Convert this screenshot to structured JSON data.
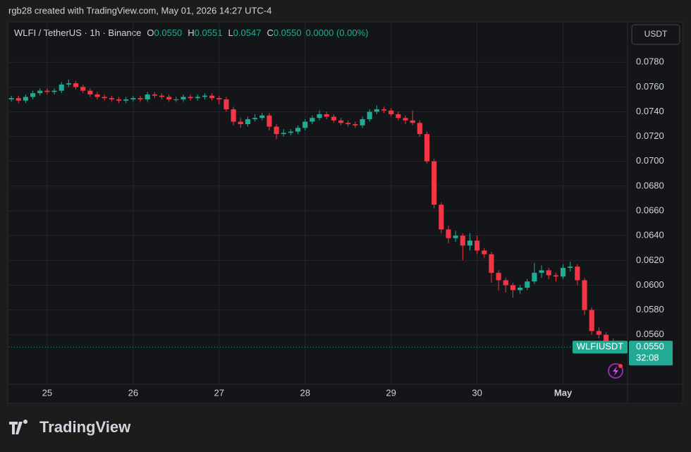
{
  "header": {
    "caption": "rgb28 created with TradingView.com, May 01, 2026 14:27 UTC-4"
  },
  "legend": {
    "symbol": "WLFI / TetherUS · 1h · Binance",
    "o_label": "O",
    "o": "0.0550",
    "h_label": "H",
    "h": "0.0551",
    "l_label": "L",
    "l": "0.0547",
    "c_label": "C",
    "c": "0.0550",
    "change": "0.0000 (0.00%)"
  },
  "currency_button": "USDT",
  "last_price": {
    "symbol": "WLFIUSDT",
    "value": 0.055,
    "label": "0.0550",
    "countdown": "32:08"
  },
  "logo": "TradingView",
  "chart_data": {
    "type": "candlestick",
    "up_color": "#22ab94",
    "down_color": "#f23645",
    "grid": true,
    "xlim": [
      -11,
      162
    ],
    "xticks": [
      {
        "value": 0,
        "label": "25"
      },
      {
        "value": 24,
        "label": "26"
      },
      {
        "value": 48,
        "label": "27"
      },
      {
        "value": 72,
        "label": "28"
      },
      {
        "value": 96,
        "label": "29"
      },
      {
        "value": 120,
        "label": "30"
      },
      {
        "value": 144,
        "label": "May"
      }
    ],
    "ylim": [
      0.052,
      0.0812
    ],
    "yticks": [
      {
        "value": 0.056,
        "label": "0.0560"
      },
      {
        "value": 0.058,
        "label": "0.0580"
      },
      {
        "value": 0.06,
        "label": "0.0600"
      },
      {
        "value": 0.062,
        "label": "0.0620"
      },
      {
        "value": 0.064,
        "label": "0.0640"
      },
      {
        "value": 0.066,
        "label": "0.0660"
      },
      {
        "value": 0.068,
        "label": "0.0680"
      },
      {
        "value": 0.07,
        "label": "0.0700"
      },
      {
        "value": 0.072,
        "label": "0.0720"
      },
      {
        "value": 0.074,
        "label": "0.0740"
      },
      {
        "value": 0.076,
        "label": "0.0760"
      },
      {
        "value": 0.078,
        "label": "0.0780"
      }
    ],
    "x": [
      -10,
      -8,
      -6,
      -4,
      -2,
      0,
      2,
      4,
      6,
      8,
      10,
      12,
      14,
      16,
      18,
      20,
      22,
      24,
      26,
      28,
      30,
      32,
      34,
      36,
      38,
      40,
      42,
      44,
      46,
      48,
      50,
      52,
      54,
      56,
      58,
      60,
      62,
      64,
      66,
      68,
      70,
      72,
      74,
      76,
      78,
      80,
      82,
      84,
      86,
      88,
      90,
      92,
      94,
      96,
      98,
      100,
      102,
      104,
      106,
      108,
      110,
      112,
      114,
      116,
      118,
      120,
      122,
      124,
      126,
      128,
      130,
      132,
      134,
      136,
      138,
      140,
      142,
      144,
      146,
      148,
      150,
      152,
      154,
      156,
      158
    ],
    "open": [
      0.075,
      0.0751,
      0.0749,
      0.0752,
      0.0755,
      0.0757,
      0.0756,
      0.0757,
      0.0762,
      0.0763,
      0.076,
      0.0757,
      0.0754,
      0.0752,
      0.0751,
      0.075,
      0.0749,
      0.075,
      0.0751,
      0.075,
      0.0754,
      0.0753,
      0.0752,
      0.075,
      0.075,
      0.0752,
      0.0751,
      0.0752,
      0.0753,
      0.0751,
      0.075,
      0.0742,
      0.0732,
      0.073,
      0.0734,
      0.0735,
      0.0737,
      0.0728,
      0.0722,
      0.0723,
      0.0724,
      0.0727,
      0.0732,
      0.0735,
      0.0738,
      0.0736,
      0.0733,
      0.0731,
      0.073,
      0.0729,
      0.0734,
      0.074,
      0.0742,
      0.0741,
      0.0738,
      0.0735,
      0.0733,
      0.0731,
      0.0722,
      0.07,
      0.0665,
      0.0645,
      0.0638,
      0.064,
      0.0632,
      0.0636,
      0.0628,
      0.0625,
      0.061,
      0.0604,
      0.06,
      0.0596,
      0.0598,
      0.0603,
      0.061,
      0.0612,
      0.0608,
      0.0607,
      0.0614,
      0.0615,
      0.0604,
      0.058,
      0.0563,
      0.056,
      0.0555
    ],
    "high": [
      0.0753,
      0.0753,
      0.0754,
      0.0757,
      0.0759,
      0.0759,
      0.0759,
      0.0764,
      0.0766,
      0.0765,
      0.0762,
      0.0759,
      0.0756,
      0.0754,
      0.0753,
      0.0752,
      0.0752,
      0.0753,
      0.0753,
      0.0756,
      0.0756,
      0.0755,
      0.0754,
      0.0752,
      0.0754,
      0.0754,
      0.0754,
      0.0755,
      0.0755,
      0.0753,
      0.0752,
      0.0744,
      0.0735,
      0.0736,
      0.0738,
      0.0739,
      0.0739,
      0.073,
      0.0726,
      0.0726,
      0.0729,
      0.0734,
      0.0737,
      0.0741,
      0.074,
      0.0738,
      0.0735,
      0.0733,
      0.0732,
      0.0736,
      0.0742,
      0.0745,
      0.0744,
      0.0743,
      0.074,
      0.0737,
      0.0741,
      0.0733,
      0.0724,
      0.0702,
      0.0667,
      0.0648,
      0.0644,
      0.0642,
      0.0642,
      0.064,
      0.063,
      0.0627,
      0.0612,
      0.0606,
      0.0602,
      0.06,
      0.0605,
      0.0618,
      0.0616,
      0.0614,
      0.061,
      0.0617,
      0.0619,
      0.0617,
      0.0606,
      0.0582,
      0.0566,
      0.0562,
      0.0557
    ],
    "low": [
      0.0748,
      0.0747,
      0.0747,
      0.075,
      0.0753,
      0.0754,
      0.0754,
      0.0755,
      0.076,
      0.0758,
      0.0755,
      0.0752,
      0.075,
      0.0749,
      0.0748,
      0.0747,
      0.0747,
      0.0748,
      0.0748,
      0.0748,
      0.0751,
      0.075,
      0.0748,
      0.0748,
      0.0748,
      0.0749,
      0.0749,
      0.075,
      0.0749,
      0.0746,
      0.074,
      0.0729,
      0.0727,
      0.0728,
      0.0732,
      0.0733,
      0.0725,
      0.0718,
      0.072,
      0.0721,
      0.0722,
      0.0725,
      0.073,
      0.0733,
      0.0734,
      0.0731,
      0.0729,
      0.0728,
      0.0727,
      0.0727,
      0.0732,
      0.0738,
      0.0739,
      0.0736,
      0.0733,
      0.073,
      0.0729,
      0.072,
      0.0698,
      0.0662,
      0.0642,
      0.0634,
      0.0635,
      0.062,
      0.0628,
      0.0625,
      0.0622,
      0.0602,
      0.0596,
      0.0594,
      0.059,
      0.0593,
      0.0596,
      0.0601,
      0.0606,
      0.0605,
      0.0603,
      0.0605,
      0.0611,
      0.06,
      0.0576,
      0.056,
      0.0557,
      0.0553,
      0.0548
    ],
    "close": [
      0.0751,
      0.0749,
      0.0752,
      0.0755,
      0.0757,
      0.0756,
      0.0757,
      0.0762,
      0.0763,
      0.076,
      0.0757,
      0.0754,
      0.0752,
      0.0751,
      0.075,
      0.0749,
      0.075,
      0.0751,
      0.075,
      0.0754,
      0.0753,
      0.0752,
      0.075,
      0.075,
      0.0752,
      0.0751,
      0.0752,
      0.0753,
      0.0751,
      0.075,
      0.0742,
      0.0732,
      0.073,
      0.0734,
      0.0735,
      0.0737,
      0.0728,
      0.0722,
      0.0723,
      0.0724,
      0.0727,
      0.0732,
      0.0735,
      0.0738,
      0.0736,
      0.0733,
      0.0731,
      0.073,
      0.0729,
      0.0734,
      0.074,
      0.0742,
      0.0741,
      0.0738,
      0.0735,
      0.0733,
      0.0731,
      0.0722,
      0.07,
      0.0665,
      0.0645,
      0.0638,
      0.064,
      0.0632,
      0.0636,
      0.0628,
      0.0625,
      0.061,
      0.0604,
      0.06,
      0.0596,
      0.0598,
      0.0603,
      0.061,
      0.0612,
      0.0608,
      0.0607,
      0.0614,
      0.0615,
      0.0604,
      0.058,
      0.0563,
      0.056,
      0.0555,
      0.055
    ]
  }
}
